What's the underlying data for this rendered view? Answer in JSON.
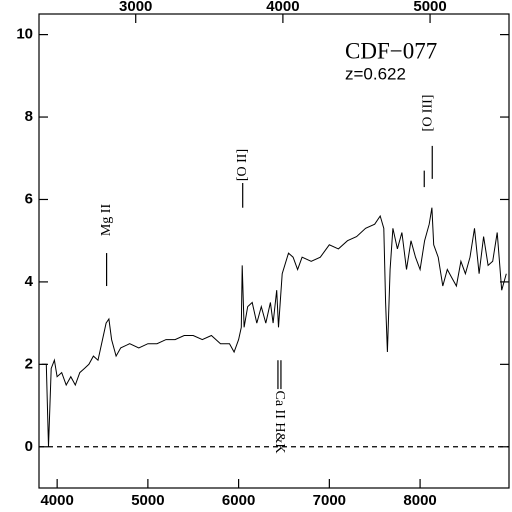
{
  "chart_data": {
    "type": "line",
    "title": "CDF−077",
    "subtitle": "z=0.622",
    "x": [
      3830,
      3880,
      3905,
      3935,
      3970,
      4000,
      4050,
      4100,
      4150,
      4200,
      4250,
      4300,
      4350,
      4400,
      4450,
      4500,
      4540,
      4570,
      4600,
      4650,
      4700,
      4800,
      4900,
      5000,
      5100,
      5200,
      5300,
      5400,
      5500,
      5600,
      5700,
      5800,
      5900,
      5950,
      6000,
      6030,
      6040,
      6060,
      6100,
      6150,
      6200,
      6250,
      6300,
      6350,
      6380,
      6420,
      6440,
      6480,
      6550,
      6600,
      6650,
      6700,
      6800,
      6900,
      7000,
      7100,
      7200,
      7300,
      7400,
      7500,
      7560,
      7600,
      7620,
      7640,
      7670,
      7700,
      7750,
      7800,
      7850,
      7900,
      7950,
      8000,
      8050,
      8100,
      8130,
      8150,
      8200,
      8250,
      8300,
      8350,
      8400,
      8450,
      8500,
      8550,
      8600,
      8650,
      8700,
      8750,
      8800,
      8850,
      8900,
      8950
    ],
    "series": [
      {
        "color": "#000000",
        "values": [
          2.0,
          2.0,
          0.0,
          1.9,
          2.1,
          1.7,
          1.8,
          1.5,
          1.7,
          1.5,
          1.8,
          1.9,
          2.0,
          2.2,
          2.1,
          2.6,
          3.0,
          3.1,
          2.6,
          2.2,
          2.4,
          2.5,
          2.4,
          2.5,
          2.5,
          2.6,
          2.6,
          2.7,
          2.7,
          2.6,
          2.7,
          2.5,
          2.5,
          2.3,
          2.6,
          2.9,
          4.4,
          2.9,
          3.4,
          3.5,
          3.0,
          3.4,
          3.0,
          3.5,
          3.0,
          3.8,
          2.9,
          4.2,
          4.7,
          4.6,
          4.3,
          4.6,
          4.5,
          4.6,
          4.9,
          4.8,
          5.0,
          5.1,
          5.3,
          5.4,
          5.6,
          5.3,
          3.5,
          2.3,
          4.3,
          5.3,
          4.8,
          5.2,
          4.3,
          5.0,
          4.6,
          4.3,
          5.0,
          5.4,
          5.8,
          4.9,
          4.6,
          3.9,
          4.3,
          4.1,
          3.9,
          4.5,
          4.2,
          4.6,
          5.3,
          4.2,
          5.1,
          4.4,
          4.5,
          5.2,
          3.8,
          4.2
        ]
      }
    ],
    "xlim": [
      3800,
      8980
    ],
    "xticks": [
      4000,
      5000,
      6000,
      7000,
      8000
    ],
    "x2lim": [
      2342.8,
      5536.4
    ],
    "x2ticks": [
      3000,
      4000,
      5000
    ],
    "ylim": [
      -1,
      10.5
    ],
    "yticks": [
      0,
      2,
      4,
      6,
      8,
      10
    ],
    "hline": 0,
    "annotations": [
      {
        "text": "Mg II",
        "x": 4545
      },
      {
        "text": "[O II]",
        "x": 6045
      },
      {
        "text": "[O III]",
        "x": 8090
      },
      {
        "text": "Ca II H&K",
        "x": 6450
      }
    ]
  }
}
